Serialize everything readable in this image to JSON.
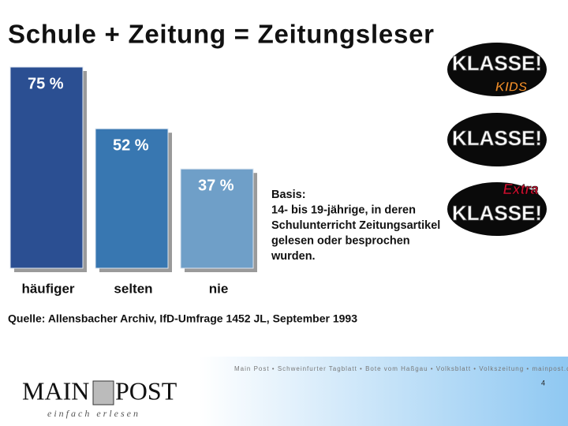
{
  "chart_data": {
    "type": "bar",
    "title": "Schule + Zeitung = Zeitungsleser",
    "categories": [
      "häufiger",
      "selten",
      "nie"
    ],
    "values": [
      75,
      52,
      37
    ],
    "value_labels": [
      "75 %",
      "52 %",
      "37 %"
    ],
    "colors": [
      "#2b4f92",
      "#3877b1",
      "#6f9fc8"
    ],
    "note": [
      "Basis:",
      "14- bis 19-jährige, in deren",
      "Schulunterricht Zeitungsartikel",
      "gelesen oder besprochen",
      "wurden."
    ],
    "source": "Quelle: Allensbacher Archiv, IfD-Umfrage 1452 JL, September 1993"
  },
  "logos": [
    {
      "label": "KLASSE!",
      "tag": "KIDS"
    },
    {
      "label": "KLASSE!"
    },
    {
      "label": "KLASSE!",
      "tag": "Extra"
    }
  ],
  "footer": {
    "papers": "Main Post • Schweinfurter Tagblatt • Bote vom Haßgau • Volksblatt • Volkszeitung • mainpost.de",
    "brand_left": "MAIN",
    "brand_right": "POST",
    "slogan": "einfach erlesen",
    "page": "4"
  }
}
